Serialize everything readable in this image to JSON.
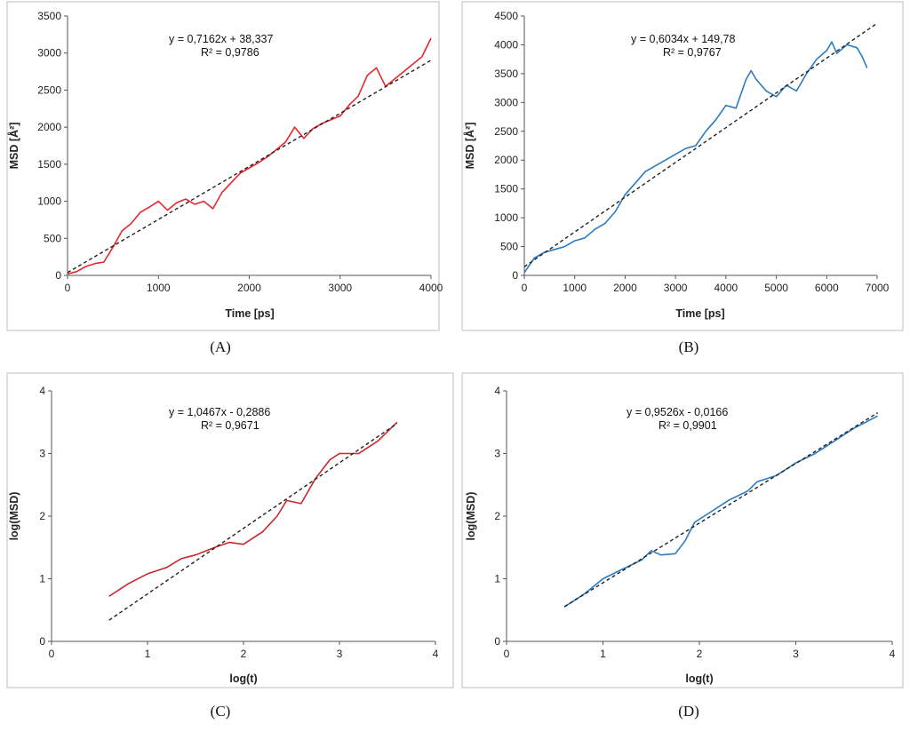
{
  "chart_data": [
    {
      "id": "A",
      "type": "line",
      "panel_label": "(A)",
      "xlabel": "Time [ps]",
      "ylabel": "MSD [Å²]",
      "xlim": [
        0,
        4000
      ],
      "ylim": [
        0,
        3500
      ],
      "xticks": [
        0,
        1000,
        2000,
        3000,
        4000
      ],
      "yticks": [
        0,
        500,
        1000,
        1500,
        2000,
        2500,
        3000,
        3500
      ],
      "xtick_labels": [
        "0",
        "1000",
        "2000",
        "3000",
        "4000"
      ],
      "ytick_labels": [
        "0",
        "500",
        "1000",
        "1500",
        "2000",
        "2500",
        "3000",
        "3500"
      ],
      "grid": false,
      "trendline": {
        "slope": 0.7162,
        "intercept": 38.337,
        "x_range": [
          0,
          4000
        ]
      },
      "equation_line1": "y = 0,7162x + 38,337",
      "equation_line2": "R² = 0,9786",
      "series": [
        {
          "name": "MSD",
          "color": "#e8262c",
          "x": [
            0,
            100,
            200,
            300,
            400,
            500,
            600,
            700,
            800,
            900,
            1000,
            1100,
            1200,
            1300,
            1400,
            1500,
            1600,
            1700,
            1800,
            1900,
            2000,
            2100,
            2200,
            2300,
            2400,
            2500,
            2600,
            2700,
            2800,
            2900,
            3000,
            3100,
            3200,
            3300,
            3400,
            3500,
            3600,
            3700,
            3800,
            3900,
            4000
          ],
          "y": [
            20,
            50,
            120,
            160,
            180,
            380,
            600,
            700,
            850,
            920,
            1000,
            880,
            980,
            1030,
            960,
            1000,
            900,
            1120,
            1250,
            1380,
            1450,
            1520,
            1600,
            1700,
            1800,
            2000,
            1850,
            1980,
            2050,
            2100,
            2150,
            2300,
            2420,
            2700,
            2800,
            2550,
            2650,
            2750,
            2850,
            2950,
            3200
          ]
        }
      ]
    },
    {
      "id": "B",
      "type": "line",
      "panel_label": "(B)",
      "xlabel": "Time [ps]",
      "ylabel": "MSD [Å²]",
      "xlim": [
        0,
        7000
      ],
      "ylim": [
        0,
        4500
      ],
      "xticks": [
        0,
        1000,
        2000,
        3000,
        4000,
        5000,
        6000,
        7000
      ],
      "yticks": [
        0,
        500,
        1000,
        1500,
        2000,
        2500,
        3000,
        3500,
        4000,
        4500
      ],
      "xtick_labels": [
        "0",
        "1000",
        "2000",
        "3000",
        "4000",
        "5000",
        "6000",
        "7000"
      ],
      "ytick_labels": [
        "0",
        "500",
        "1000",
        "1500",
        "2000",
        "2500",
        "3000",
        "3500",
        "4000",
        "4500"
      ],
      "grid": false,
      "trendline": {
        "slope": 0.6034,
        "intercept": 149.78,
        "x_range": [
          0,
          7000
        ]
      },
      "equation_line1": "y = 0,6034x + 149,78",
      "equation_line2": "R² = 0,9767",
      "series": [
        {
          "name": "MSD",
          "color": "#2b7bc0",
          "x": [
            0,
            200,
            400,
            600,
            800,
            1000,
            1200,
            1400,
            1600,
            1800,
            2000,
            2200,
            2400,
            2600,
            2800,
            3000,
            3200,
            3400,
            3600,
            3800,
            4000,
            4200,
            4400,
            4500,
            4600,
            4800,
            5000,
            5200,
            5400,
            5600,
            5800,
            6000,
            6100,
            6200,
            6400,
            6600,
            6700,
            6800
          ],
          "y": [
            50,
            300,
            400,
            450,
            500,
            600,
            650,
            800,
            900,
            1100,
            1400,
            1600,
            1800,
            1900,
            2000,
            2100,
            2200,
            2250,
            2500,
            2700,
            2950,
            2900,
            3400,
            3550,
            3400,
            3200,
            3100,
            3300,
            3200,
            3500,
            3750,
            3900,
            4050,
            3850,
            4000,
            3950,
            3800,
            3600
          ]
        }
      ]
    },
    {
      "id": "C",
      "type": "line",
      "panel_label": "(C)",
      "xlabel": "log(t)",
      "ylabel": "log(MSD)",
      "xlim": [
        0,
        4
      ],
      "ylim": [
        0,
        4
      ],
      "xticks": [
        0,
        1,
        2,
        3,
        4
      ],
      "yticks": [
        0,
        1,
        2,
        3,
        4
      ],
      "xtick_labels": [
        "0",
        "1",
        "2",
        "3",
        "4"
      ],
      "ytick_labels": [
        "0",
        "1",
        "2",
        "3",
        "4"
      ],
      "grid": false,
      "trendline": {
        "slope": 1.0467,
        "intercept": -0.2886,
        "x_range": [
          0.6,
          3.6
        ]
      },
      "equation_line1": "y = 1,0467x - 0,2886",
      "equation_line2": "R² = 0,9671",
      "series": [
        {
          "name": "log(MSD)",
          "color": "#c8282c",
          "x": [
            0.6,
            0.8,
            1.0,
            1.2,
            1.35,
            1.5,
            1.7,
            1.85,
            2.0,
            2.2,
            2.35,
            2.45,
            2.6,
            2.75,
            2.9,
            3.0,
            3.2,
            3.4,
            3.6
          ],
          "y": [
            0.72,
            0.92,
            1.08,
            1.18,
            1.32,
            1.38,
            1.5,
            1.58,
            1.55,
            1.75,
            2.0,
            2.25,
            2.2,
            2.6,
            2.9,
            3.0,
            3.0,
            3.2,
            3.5
          ]
        }
      ]
    },
    {
      "id": "D",
      "type": "line",
      "panel_label": "(D)",
      "xlabel": "log(t)",
      "ylabel": "log(MSD)",
      "xlim": [
        0,
        4
      ],
      "ylim": [
        0,
        4
      ],
      "xticks": [
        0,
        1,
        2,
        3,
        4
      ],
      "yticks": [
        0,
        1,
        2,
        3,
        4
      ],
      "xtick_labels": [
        "0",
        "1",
        "2",
        "3",
        "4"
      ],
      "ytick_labels": [
        "0",
        "1",
        "2",
        "3",
        "4"
      ],
      "grid": false,
      "trendline": {
        "slope": 0.9526,
        "intercept": -0.0166,
        "x_range": [
          0.6,
          3.85
        ]
      },
      "equation_line1": "y = 0,9526x - 0,0166",
      "equation_line2": "R² = 0,9901",
      "series": [
        {
          "name": "log(MSD)",
          "color": "#2b7bc0",
          "x": [
            0.6,
            0.8,
            1.0,
            1.2,
            1.4,
            1.5,
            1.6,
            1.75,
            1.85,
            1.95,
            2.1,
            2.3,
            2.5,
            2.6,
            2.8,
            3.0,
            3.2,
            3.4,
            3.6,
            3.85
          ],
          "y": [
            0.55,
            0.75,
            1.0,
            1.15,
            1.3,
            1.45,
            1.38,
            1.4,
            1.6,
            1.9,
            2.05,
            2.25,
            2.4,
            2.55,
            2.65,
            2.85,
            3.0,
            3.2,
            3.4,
            3.6
          ]
        }
      ]
    }
  ]
}
